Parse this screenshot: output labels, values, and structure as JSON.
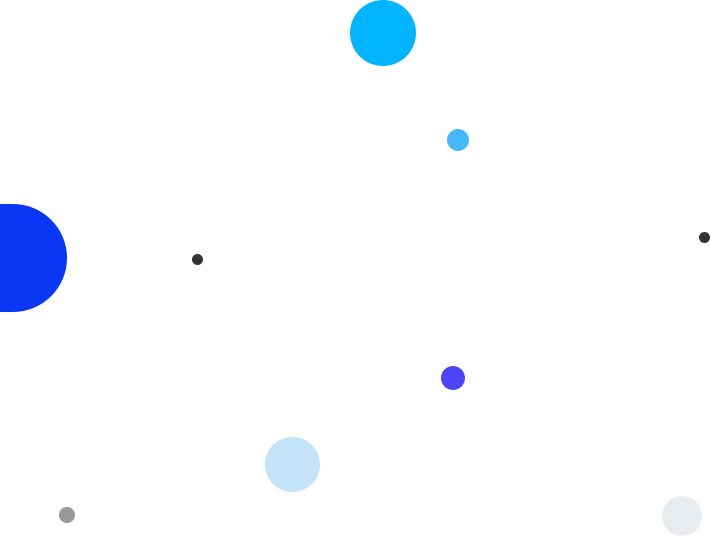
{
  "background": "#ffffff",
  "circles": [
    {
      "id": "c1",
      "color": "#00b4ff"
    },
    {
      "id": "c2",
      "color": "#45b8fa"
    },
    {
      "id": "c3",
      "color": "#0a37f5"
    },
    {
      "id": "c4",
      "color": "#333333"
    },
    {
      "id": "c5",
      "color": "#333333"
    },
    {
      "id": "c6",
      "color": "#4b45f5"
    },
    {
      "id": "c7",
      "color": "#c5e3f6"
    },
    {
      "id": "c8",
      "color": "#999999"
    },
    {
      "id": "c9",
      "color": "#e9ecef"
    }
  ]
}
